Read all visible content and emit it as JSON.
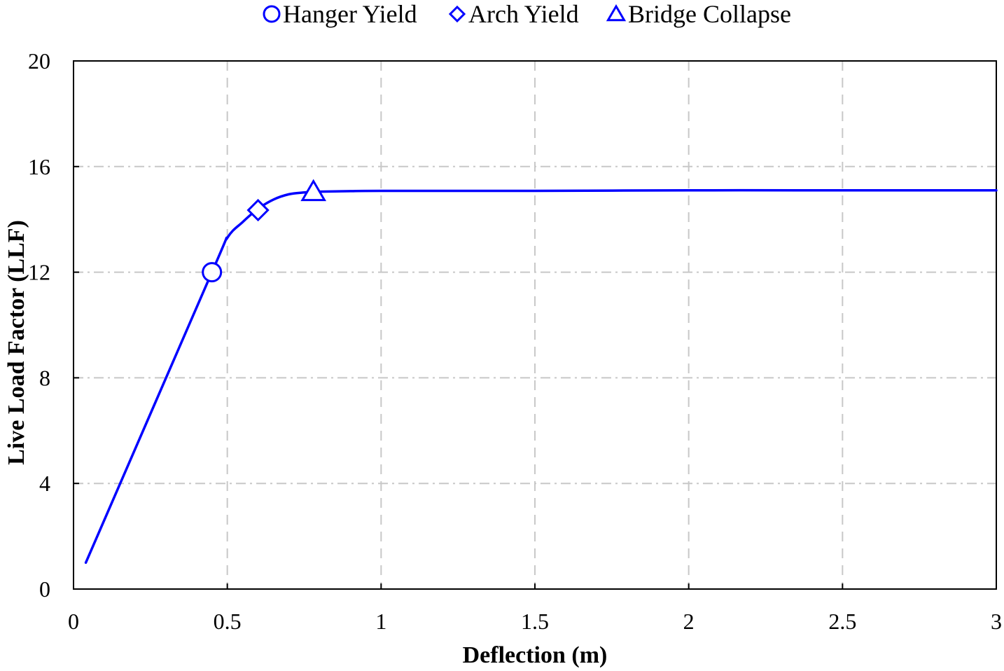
{
  "chart_data": {
    "type": "line",
    "title": "",
    "xlabel": "Deflection (m)",
    "ylabel": "Live Load Factor (LLF)",
    "xlim": [
      0,
      3
    ],
    "ylim": [
      0,
      20
    ],
    "xticks": [
      0,
      0.5,
      1,
      1.5,
      2,
      2.5,
      3
    ],
    "xtick_labels": [
      "0",
      "0.5",
      "1",
      "1.5",
      "2",
      "2.5",
      "3"
    ],
    "yticks": [
      0,
      4,
      8,
      12,
      16,
      20
    ],
    "ytick_labels": [
      "0",
      "4",
      "8",
      "12",
      "16",
      "20"
    ],
    "grid": true,
    "legend_position": "top-center",
    "line_color": "#0000ff",
    "series": [
      {
        "x": [
          0.04,
          0.45,
          0.5,
          0.55,
          0.6,
          0.65,
          0.7,
          0.75,
          0.8,
          0.9,
          1.0,
          1.5,
          2.0,
          2.5,
          3.0
        ],
        "y": [
          1.0,
          12.0,
          13.3,
          13.9,
          14.4,
          14.75,
          14.95,
          15.02,
          15.05,
          15.07,
          15.08,
          15.08,
          15.1,
          15.1,
          15.1
        ]
      }
    ],
    "markers": [
      {
        "label": "Hanger Yield",
        "shape": "circle",
        "x": 0.45,
        "y": 12.0
      },
      {
        "label": "Arch Yield",
        "shape": "diamond",
        "x": 0.6,
        "y": 14.35
      },
      {
        "label": "Bridge Collapse",
        "shape": "triangle",
        "x": 0.78,
        "y": 15.05
      }
    ]
  }
}
